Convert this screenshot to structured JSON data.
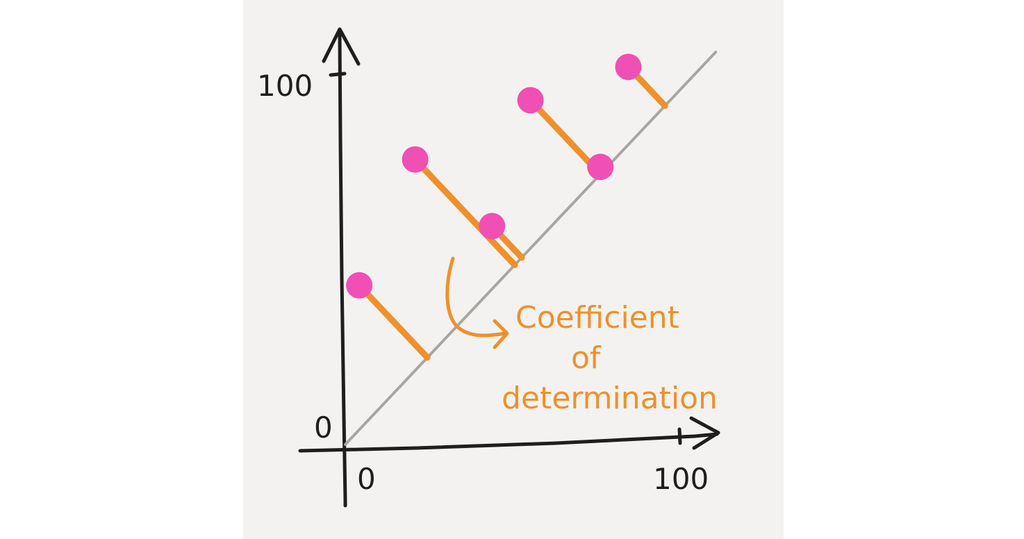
{
  "chart_data": {
    "type": "scatter",
    "title": "",
    "xlabel": "",
    "ylabel": "",
    "xlim": [
      0,
      100
    ],
    "ylim": [
      0,
      100
    ],
    "x_ticks": [
      "0",
      "100"
    ],
    "y_ticks": [
      "0",
      "100"
    ],
    "grid": false,
    "fit_line": {
      "slope": 1,
      "intercept": 0
    },
    "points": [
      {
        "x": 4,
        "y": 43
      },
      {
        "x": 20,
        "y": 77
      },
      {
        "x": 42,
        "y": 59
      },
      {
        "x": 53,
        "y": 93
      },
      {
        "x": 73,
        "y": 75
      },
      {
        "x": 81,
        "y": 102
      }
    ],
    "annotation": {
      "lines": [
        "Coefficient",
        "of",
        "determination"
      ]
    },
    "colors": {
      "background": "#f3f2f0",
      "axes": "#1e1e1e",
      "fit_line": "#a8a6a2",
      "points": "#f04fb4",
      "residuals": "#f0902c",
      "annotation": "#f0902c"
    }
  }
}
